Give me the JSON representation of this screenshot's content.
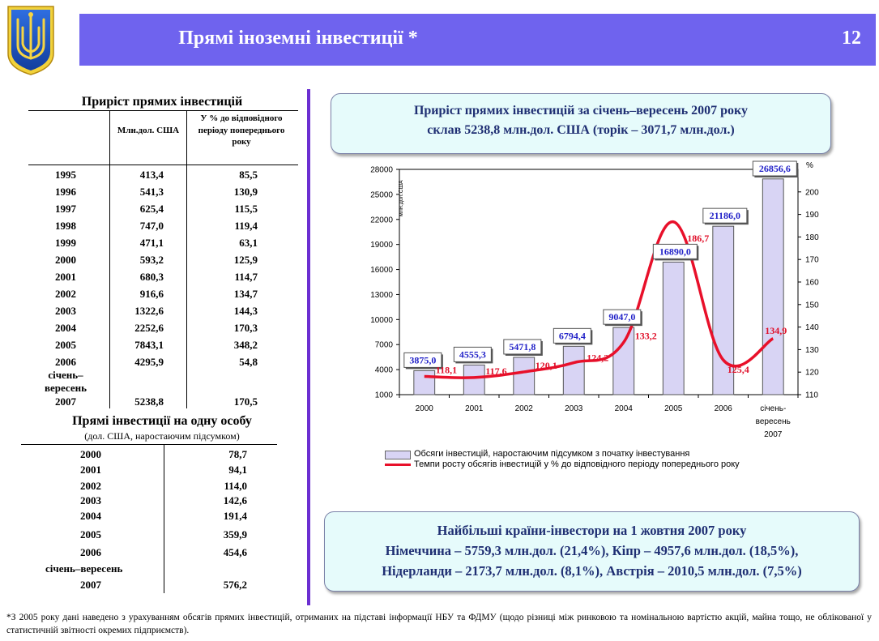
{
  "header": {
    "title": "Прямі іноземні інвестиції *",
    "page_number": "12",
    "accent": "#6f63ee"
  },
  "growth_table": {
    "title": "Приріст прямих інвестицій",
    "col1_header": "Млн.дол. США",
    "col2_header": "У % до відповідного періоду попереднього року",
    "rows": [
      {
        "year": "1995",
        "mln": "413,4",
        "pct": "85,5"
      },
      {
        "year": "1996",
        "mln": "541,3",
        "pct": "130,9"
      },
      {
        "year": "1997",
        "mln": "625,4",
        "pct": "115,5"
      },
      {
        "year": "1998",
        "mln": "747,0",
        "pct": "119,4"
      },
      {
        "year": "1999",
        "mln": "471,1",
        "pct": "63,1"
      },
      {
        "year": "2000",
        "mln": "593,2",
        "pct": "125,9"
      },
      {
        "year": "2001",
        "mln": "680,3",
        "pct": "114,7"
      },
      {
        "year": "2002",
        "mln": "916,6",
        "pct": "134,7"
      },
      {
        "year": "2003",
        "mln": "1322,6",
        "pct": "144,3"
      },
      {
        "year": "2004",
        "mln": "2252,6",
        "pct": "170,3"
      },
      {
        "year": "2005",
        "mln": "7843,1",
        "pct": "348,2"
      },
      {
        "year": "2006",
        "mln": "4295,9",
        "pct": "54,8"
      }
    ],
    "period_label": "січень–вересень",
    "last_row": {
      "year": "2007",
      "mln": "5238,8",
      "pct": "170,5"
    }
  },
  "per_capita_table": {
    "title": "Прямі інвестиції на одну особу",
    "subtitle": "(дол. США, наростаючим підсумком)",
    "rows": [
      {
        "year": "2000",
        "value": "78,7"
      },
      {
        "year": "2001",
        "value": "94,1"
      },
      {
        "year": "2002",
        "value": "114,0"
      },
      {
        "year": "2003",
        "value": "142,6"
      },
      {
        "year": "2004",
        "value": "191,4"
      },
      {
        "year": "2005",
        "value": "359,9"
      },
      {
        "year": "2006",
        "value": "454,6"
      }
    ],
    "period_label": "січень–вересень",
    "last_row": {
      "year": "2007",
      "value": "576,2"
    }
  },
  "summary_box": {
    "line1": "Приріст прямих інвестицій за січень–вересень 2007 року",
    "line2": "склав 5238,8 млн.дол. США (торік – 3071,7 млн.дол.)"
  },
  "investors_box": {
    "line1": "Найбільші країни-інвестори на 1 жовтня 2007 року",
    "line2": "Німеччина – 5759,3 млн.дол. (21,4%), Кіпр – 4957,6 млн.дол. (18,5%),",
    "line3": "Нідерланди – 2173,7 млн.дол. (8,1%), Австрія – 2010,5 млн.дол. (7,5%)"
  },
  "chart_data": {
    "type": "bar",
    "categories": [
      "2000",
      "2001",
      "2002",
      "2003",
      "2004",
      "2005",
      "2006",
      "січень-вересень 2007"
    ],
    "category_lines": [
      [
        "2000"
      ],
      [
        "2001"
      ],
      [
        "2002"
      ],
      [
        "2003"
      ],
      [
        "2004"
      ],
      [
        "2005"
      ],
      [
        "2006"
      ],
      [
        "січень-",
        "вересень",
        "2007"
      ]
    ],
    "series": [
      {
        "name": "Обсяги інвестицій, наростаючим підсумком з початку інвестування",
        "type": "bar",
        "axis": "left",
        "values": [
          3875.0,
          4555.3,
          5471.8,
          6794.4,
          9047.0,
          16890.0,
          21186.0,
          26856.6
        ],
        "labels": [
          "3875,0",
          "4555,3",
          "5471,8",
          "6794,4",
          "9047,0",
          "16890,0",
          "21186,0",
          "26856,6"
        ],
        "color": "#d8d4f4"
      },
      {
        "name": "Темпи росту обсягів інвестицій у % до відповідного періоду попереднього року",
        "type": "line",
        "axis": "right",
        "values": [
          118.1,
          117.6,
          120.1,
          124.2,
          133.2,
          186.7,
          125.4,
          134.9
        ],
        "labels": [
          "118,1",
          "117,6",
          "120,1",
          "124,2",
          "133,2",
          "186,7",
          "125,4",
          "134,9"
        ],
        "color": "#e8102a"
      }
    ],
    "ylabel_left": "млн.дол.США",
    "ylabel_right": "%",
    "ylim_left": [
      1000,
      28000
    ],
    "yticks_left": [
      1000,
      4000,
      7000,
      10000,
      13000,
      16000,
      19000,
      22000,
      25000,
      28000
    ],
    "ylim_right": [
      110,
      210
    ],
    "yticks_right": [
      110,
      120,
      130,
      140,
      150,
      160,
      170,
      180,
      190,
      200
    ],
    "legend_position": "bottom"
  },
  "footnote": "*З 2005 року дані наведено з урахуванням обсягів прямих інвестицій, отриманих на підставі інформації НБУ та ФДМУ (щодо різниці між ринковою та номінальною вартістю акцій, майна тощо, не облікованої у статистичній звітності окремих підприємств)."
}
